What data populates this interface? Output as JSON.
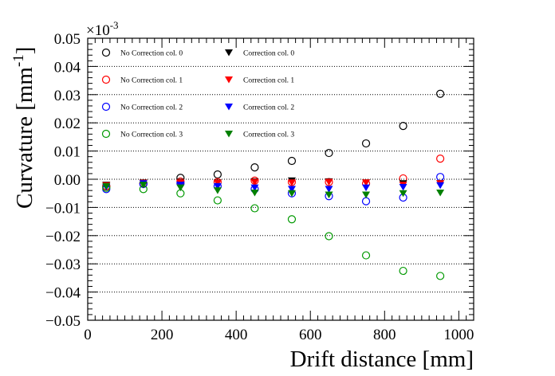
{
  "chart_data": {
    "type": "scatter",
    "title": "",
    "xlabel": "Drift distance [mm]",
    "ylabel": "Curvature [mm",
    "ylabel_sup": "-1",
    "ylabel_close": "]",
    "y_exponent_base": "×10",
    "y_exponent_power": "-3",
    "xlim": [
      0,
      1040
    ],
    "ylim": [
      -0.05,
      0.05
    ],
    "xticks": [
      0,
      200,
      400,
      600,
      800,
      1000
    ],
    "yticks": [
      0.05,
      0.04,
      0.03,
      0.02,
      0.01,
      0.0,
      -0.01,
      -0.02,
      -0.03,
      -0.04,
      -0.05
    ],
    "ytick_labels": [
      "0.05",
      "0.04",
      "0.03",
      "0.02",
      "0.01",
      "0.00",
      "−0.01",
      "−0.02",
      "−0.03",
      "−0.04",
      "−0.05"
    ],
    "xtick_labels": [
      "0",
      "200",
      "400",
      "600",
      "800",
      "1000"
    ],
    "grid_y": true,
    "x": [
      50,
      150,
      250,
      350,
      450,
      550,
      650,
      750,
      850,
      950
    ],
    "series": [
      {
        "name": "No Correction col. 0",
        "marker": "open-circle",
        "color": "#000000",
        "values": [
          -0.0025,
          -0.0015,
          0.0005,
          0.0017,
          0.0042,
          0.0065,
          0.0093,
          0.0127,
          0.0189,
          0.0303
        ]
      },
      {
        "name": "No Correction col. 1",
        "marker": "open-circle",
        "color": "#ff0000",
        "values": [
          -0.0025,
          -0.0015,
          -0.0008,
          -0.001,
          -0.0005,
          -0.001,
          -0.001,
          -0.0015,
          0.0003,
          0.0073
        ]
      },
      {
        "name": "No Correction col. 2",
        "marker": "open-circle",
        "color": "#0000ff",
        "values": [
          -0.0035,
          -0.0017,
          -0.0015,
          -0.0025,
          -0.0035,
          -0.005,
          -0.006,
          -0.0078,
          -0.0065,
          0.0008
        ]
      },
      {
        "name": "No Correction col. 3",
        "marker": "open-circle",
        "color": "#009900",
        "values": [
          -0.003,
          -0.0035,
          -0.005,
          -0.0075,
          -0.0103,
          -0.0142,
          -0.0202,
          -0.027,
          -0.0325,
          -0.0343
        ]
      },
      {
        "name": "Correction col. 0",
        "marker": "filled-triangle-down",
        "color": "#000000",
        "values": [
          -0.002,
          -0.0012,
          -0.001,
          -0.0012,
          -0.0008,
          -0.0005,
          -0.0008,
          -0.0012,
          -0.0015,
          -0.0015
        ]
      },
      {
        "name": "Correction col. 1",
        "marker": "filled-triangle-down",
        "color": "#ff0000",
        "values": [
          -0.0022,
          -0.0013,
          -0.0012,
          -0.0013,
          -0.001,
          -0.0012,
          -0.001,
          -0.0012,
          -0.002,
          -0.0015
        ]
      },
      {
        "name": "Correction col. 2",
        "marker": "filled-triangle-down",
        "color": "#0000ff",
        "values": [
          -0.0028,
          -0.0015,
          -0.002,
          -0.0025,
          -0.003,
          -0.0035,
          -0.0035,
          -0.003,
          -0.0028,
          -0.0022
        ]
      },
      {
        "name": "Correction col. 3",
        "marker": "filled-triangle-down",
        "color": "#008000",
        "values": [
          -0.0025,
          -0.002,
          -0.003,
          -0.004,
          -0.0048,
          -0.005,
          -0.0055,
          -0.0055,
          -0.005,
          -0.0048
        ]
      }
    ],
    "legend_placement": "top-left (two columns)"
  }
}
